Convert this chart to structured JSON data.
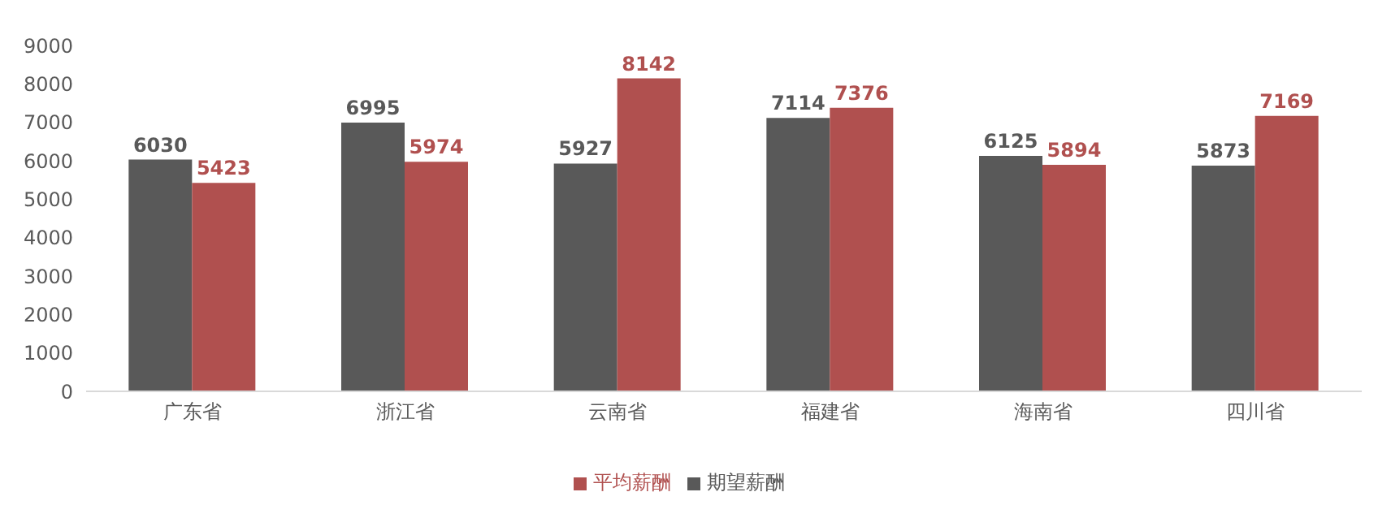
{
  "chart_data": {
    "type": "bar",
    "categories": [
      "广东省",
      "浙江省",
      "云南省",
      "福建省",
      "海南省",
      "四川省"
    ],
    "series": [
      {
        "name": "期望薪酬",
        "color": "#595959",
        "values": [
          6030,
          6995,
          5927,
          7114,
          6125,
          5873
        ]
      },
      {
        "name": "平均薪酬",
        "color": "#b0504f",
        "values": [
          5423,
          5974,
          8142,
          7376,
          5894,
          7169
        ]
      }
    ],
    "ylim": [
      0,
      9000
    ],
    "yticks": [
      0,
      1000,
      2000,
      3000,
      4000,
      5000,
      6000,
      7000,
      8000,
      9000
    ],
    "grid": false,
    "legend": "bottom",
    "data_labels": true
  }
}
